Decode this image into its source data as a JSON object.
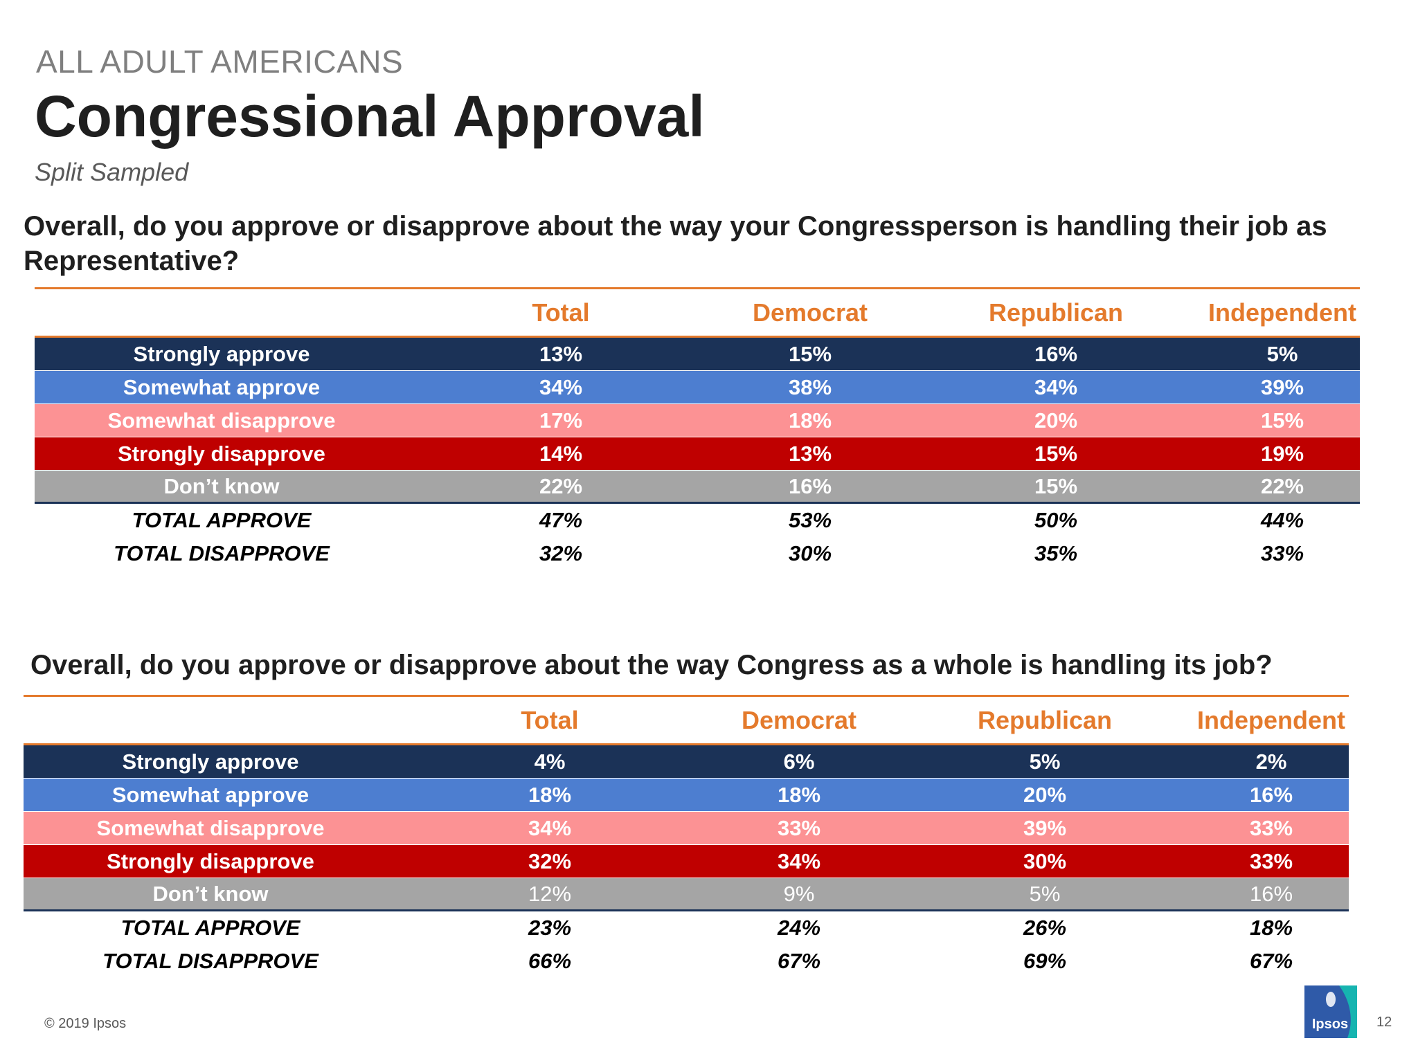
{
  "header": {
    "eyebrow": "ALL ADULT AMERICANS",
    "title": "Congressional Approval",
    "subtitle": "Split Sampled"
  },
  "tables": [
    {
      "question": "Overall, do you approve or disapprove about the way your Congressperson is handling their job as Representative?",
      "columns": [
        "Total",
        "Democrat",
        "Republican",
        "Independent"
      ],
      "rows": [
        {
          "label": "Strongly approve",
          "values": [
            "13%",
            "15%",
            "16%",
            "5%"
          ]
        },
        {
          "label": "Somewhat approve",
          "values": [
            "34%",
            "38%",
            "34%",
            "39%"
          ]
        },
        {
          "label": "Somewhat disapprove",
          "values": [
            "17%",
            "18%",
            "20%",
            "15%"
          ]
        },
        {
          "label": "Strongly disapprove",
          "values": [
            "14%",
            "13%",
            "15%",
            "19%"
          ]
        },
        {
          "label": "Don’t know",
          "values": [
            "22%",
            "16%",
            "15%",
            "22%"
          ]
        },
        {
          "label": "TOTAL APPROVE",
          "values": [
            "47%",
            "53%",
            "50%",
            "44%"
          ]
        },
        {
          "label": "TOTAL DISAPPROVE",
          "values": [
            "32%",
            "30%",
            "35%",
            "33%"
          ]
        }
      ]
    },
    {
      "question": "Overall, do you approve or disapprove about the way Congress as a whole is handling its job?",
      "columns": [
        "Total",
        "Democrat",
        "Republican",
        "Independent"
      ],
      "rows": [
        {
          "label": "Strongly approve",
          "values": [
            "4%",
            "6%",
            "5%",
            "2%"
          ]
        },
        {
          "label": "Somewhat approve",
          "values": [
            "18%",
            "18%",
            "20%",
            "16%"
          ]
        },
        {
          "label": "Somewhat disapprove",
          "values": [
            "34%",
            "33%",
            "39%",
            "33%"
          ]
        },
        {
          "label": "Strongly disapprove",
          "values": [
            "32%",
            "34%",
            "30%",
            "33%"
          ]
        },
        {
          "label": "Don’t know",
          "values": [
            "12%",
            "9%",
            "5%",
            "16%"
          ]
        },
        {
          "label": "TOTAL APPROVE",
          "values": [
            "23%",
            "24%",
            "26%",
            "18%"
          ]
        },
        {
          "label": "TOTAL DISAPPROVE",
          "values": [
            "66%",
            "67%",
            "69%",
            "67%"
          ]
        }
      ]
    }
  ],
  "footer": {
    "copyright": "© 2019 Ipsos",
    "page_number": "12",
    "logo_text": "Ipsos"
  },
  "colors": {
    "accent_orange": "#e47a2c",
    "strongly_approve": "#1b3257",
    "somewhat_approve": "#4d7ed0",
    "somewhat_disapprove": "#fc9294",
    "strongly_disapprove": "#bf0000",
    "dont_know": "#a5a5a5",
    "logo_blue": "#2f5aa8",
    "logo_teal": "#16b4b0"
  }
}
